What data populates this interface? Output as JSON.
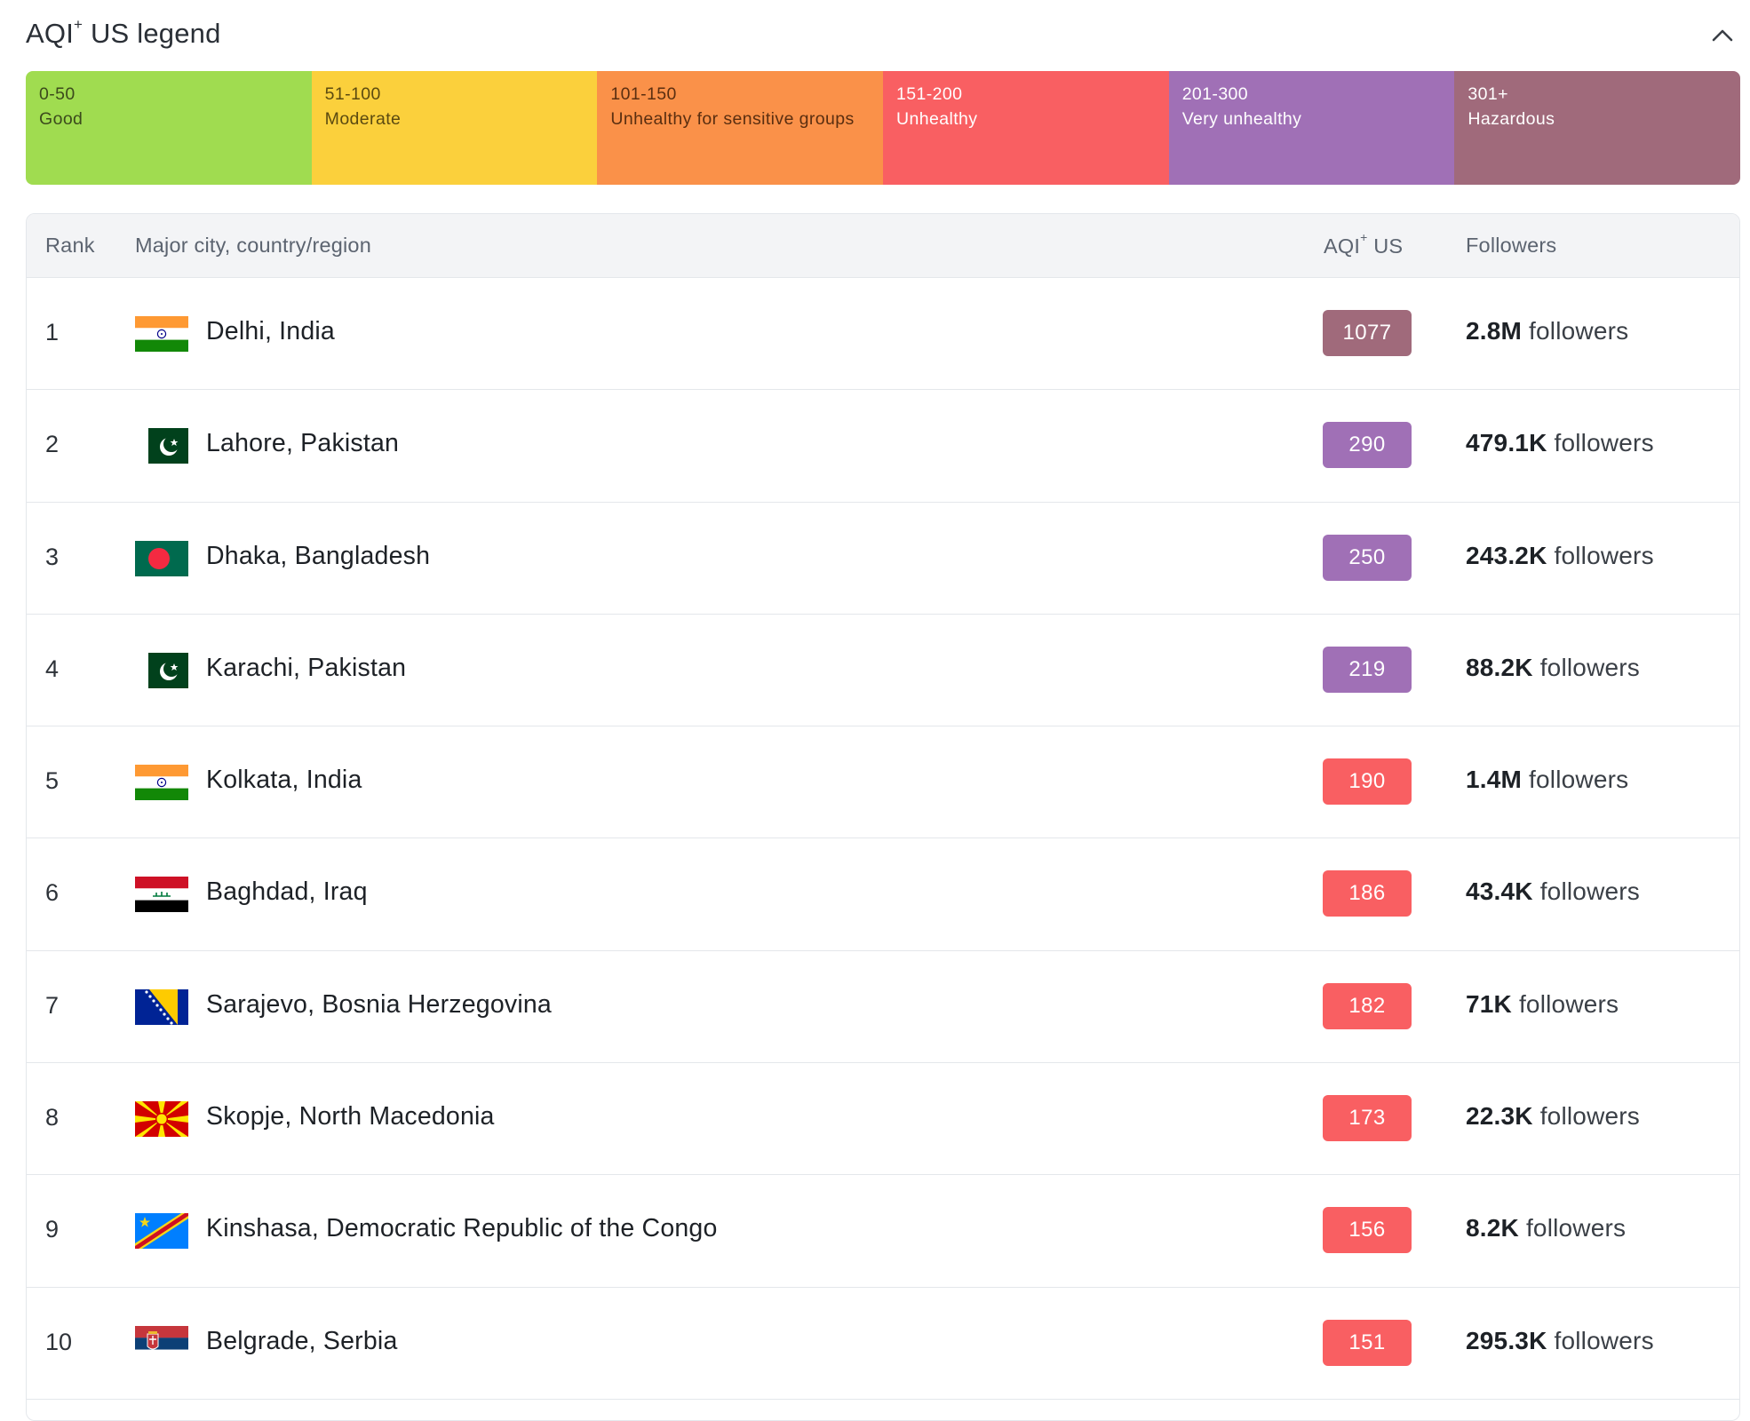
{
  "legend": {
    "title_prefix": "AQI",
    "title_sup": "+",
    "title_suffix": " US legend",
    "collapse_icon": "chevron-up-icon",
    "segments": [
      {
        "range": "0-50",
        "label": "Good",
        "color": "#a0dc50",
        "text_color": "#3b4a1c"
      },
      {
        "range": "51-100",
        "label": "Moderate",
        "color": "#fbd03c",
        "text_color": "#5b4a10"
      },
      {
        "range": "101-150",
        "label": "Unhealthy for sensitive groups",
        "color": "#fa9149",
        "text_color": "#5a2e10"
      },
      {
        "range": "151-200",
        "label": "Unhealthy",
        "color": "#f95f62",
        "text_color": "#ffffff"
      },
      {
        "range": "201-300",
        "label": "Very unhealthy",
        "color": "#a070b6",
        "text_color": "#ffffff"
      },
      {
        "range": "301+",
        "label": "Hazardous",
        "color": "#a06a7b",
        "text_color": "#ffffff"
      }
    ]
  },
  "table": {
    "headers": {
      "rank": "Rank",
      "city": "Major city, country/region",
      "aqi_prefix": "AQI",
      "aqi_sup": "+",
      "aqi_suffix": " US",
      "followers": "Followers"
    },
    "rows": [
      {
        "rank": "1",
        "flag": "india-flag-icon",
        "city": "Delhi, India",
        "aqi": "1077",
        "aqi_color": "#a06a7b",
        "followers_count": "2.8M",
        "followers_word": "followers"
      },
      {
        "rank": "2",
        "flag": "pakistan-flag-icon",
        "city": "Lahore, Pakistan",
        "aqi": "290",
        "aqi_color": "#a070b6",
        "followers_count": "479.1K",
        "followers_word": "followers"
      },
      {
        "rank": "3",
        "flag": "bangladesh-flag-icon",
        "city": "Dhaka, Bangladesh",
        "aqi": "250",
        "aqi_color": "#a070b6",
        "followers_count": "243.2K",
        "followers_word": "followers"
      },
      {
        "rank": "4",
        "flag": "pakistan-flag-icon",
        "city": "Karachi, Pakistan",
        "aqi": "219",
        "aqi_color": "#a070b6",
        "followers_count": "88.2K",
        "followers_word": "followers"
      },
      {
        "rank": "5",
        "flag": "india-flag-icon",
        "city": "Kolkata, India",
        "aqi": "190",
        "aqi_color": "#f95f62",
        "followers_count": "1.4M",
        "followers_word": "followers"
      },
      {
        "rank": "6",
        "flag": "iraq-flag-icon",
        "city": "Baghdad, Iraq",
        "aqi": "186",
        "aqi_color": "#f95f62",
        "followers_count": "43.4K",
        "followers_word": "followers"
      },
      {
        "rank": "7",
        "flag": "bosnia-flag-icon",
        "city": "Sarajevo, Bosnia Herzegovina",
        "aqi": "182",
        "aqi_color": "#f95f62",
        "followers_count": "71K",
        "followers_word": "followers"
      },
      {
        "rank": "8",
        "flag": "north-macedonia-flag-icon",
        "city": "Skopje, North Macedonia",
        "aqi": "173",
        "aqi_color": "#f95f62",
        "followers_count": "22.3K",
        "followers_word": "followers"
      },
      {
        "rank": "9",
        "flag": "dr-congo-flag-icon",
        "city": "Kinshasa, Democratic Republic of the Congo",
        "aqi": "156",
        "aqi_color": "#f95f62",
        "followers_count": "8.2K",
        "followers_word": "followers"
      },
      {
        "rank": "10",
        "flag": "serbia-flag-icon",
        "city": "Belgrade, Serbia",
        "aqi": "151",
        "aqi_color": "#f95f62",
        "followers_count": "295.3K",
        "followers_word": "followers"
      }
    ]
  }
}
